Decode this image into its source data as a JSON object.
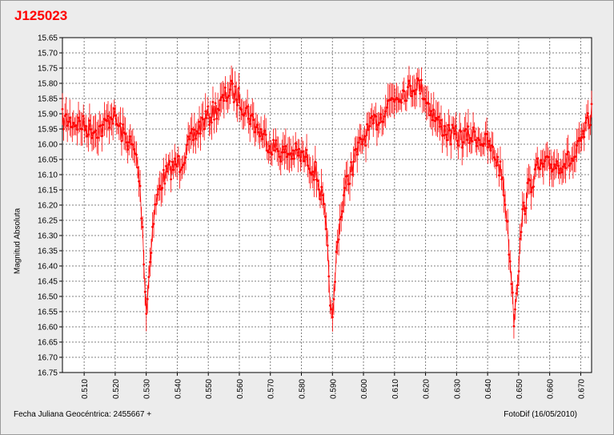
{
  "title": "J125023",
  "ylabel": "Magnitud Absoluta",
  "footer": {
    "left": "Fecha Juliana Geocéntrica: 2455667 +",
    "right": "FotoDif (16/05/2010)"
  },
  "colors": {
    "series": "#ff0000",
    "title": "#ff0000",
    "grid": "#808080"
  },
  "chart_data": {
    "type": "scatter",
    "title": "J125023",
    "xlabel": "Fecha Juliana Geocéntrica: 2455667 +",
    "ylabel": "Magnitud Absoluta",
    "xlim": [
      0.503,
      0.6735
    ],
    "ylim": [
      16.75,
      15.65
    ],
    "y_inverted": true,
    "grid": true,
    "error_bars": true,
    "typical_error": 0.04,
    "x_ticks": [
      "0.510",
      "0.520",
      "0.530",
      "0.540",
      "0.550",
      "0.560",
      "0.570",
      "0.580",
      "0.590",
      "0.600",
      "0.610",
      "0.620",
      "0.630",
      "0.640",
      "0.650",
      "0.660",
      "0.670"
    ],
    "y_ticks": [
      "15.65",
      "15.70",
      "15.75",
      "15.80",
      "15.85",
      "15.90",
      "15.95",
      "16.00",
      "16.05",
      "16.10",
      "16.15",
      "16.20",
      "16.25",
      "16.30",
      "16.35",
      "16.40",
      "16.45",
      "16.50",
      "16.55",
      "16.60",
      "16.65",
      "16.70",
      "16.75"
    ],
    "series": [
      {
        "x": [
          0.503,
          0.508,
          0.512,
          0.516,
          0.519,
          0.522,
          0.525,
          0.527,
          0.528,
          0.529,
          0.5295,
          0.53,
          0.5305,
          0.531,
          0.532,
          0.533,
          0.535,
          0.538,
          0.541,
          0.545,
          0.548,
          0.551,
          0.554,
          0.557,
          0.56,
          0.563,
          0.566,
          0.57,
          0.574,
          0.578,
          0.582,
          0.585,
          0.587,
          0.588,
          0.589,
          0.5895,
          0.59,
          0.5905,
          0.591,
          0.592,
          0.594,
          0.597,
          0.6,
          0.603,
          0.606,
          0.609,
          0.612,
          0.615,
          0.617,
          0.619,
          0.621,
          0.624,
          0.628,
          0.632,
          0.636,
          0.64,
          0.643,
          0.645,
          0.646,
          0.647,
          0.648,
          0.6485,
          0.649,
          0.65,
          0.651,
          0.653,
          0.656,
          0.66,
          0.664,
          0.668,
          0.671,
          0.6735
        ],
        "y": [
          15.92,
          15.93,
          15.95,
          15.95,
          15.9,
          15.96,
          16.0,
          16.05,
          16.15,
          16.3,
          16.45,
          16.55,
          16.5,
          16.4,
          16.28,
          16.2,
          16.12,
          16.08,
          16.06,
          15.98,
          15.93,
          15.9,
          15.87,
          15.82,
          15.85,
          15.9,
          15.95,
          16.0,
          16.03,
          16.03,
          16.05,
          16.1,
          16.2,
          16.3,
          16.45,
          16.55,
          16.6,
          16.52,
          16.4,
          16.28,
          16.15,
          16.05,
          15.98,
          15.94,
          15.9,
          15.85,
          15.83,
          15.82,
          15.8,
          15.82,
          15.87,
          15.93,
          15.97,
          15.98,
          15.97,
          16.0,
          16.05,
          16.12,
          16.22,
          16.35,
          16.48,
          16.58,
          16.5,
          16.4,
          16.25,
          16.15,
          16.08,
          16.07,
          16.06,
          16.05,
          15.97,
          15.9
        ]
      }
    ]
  }
}
